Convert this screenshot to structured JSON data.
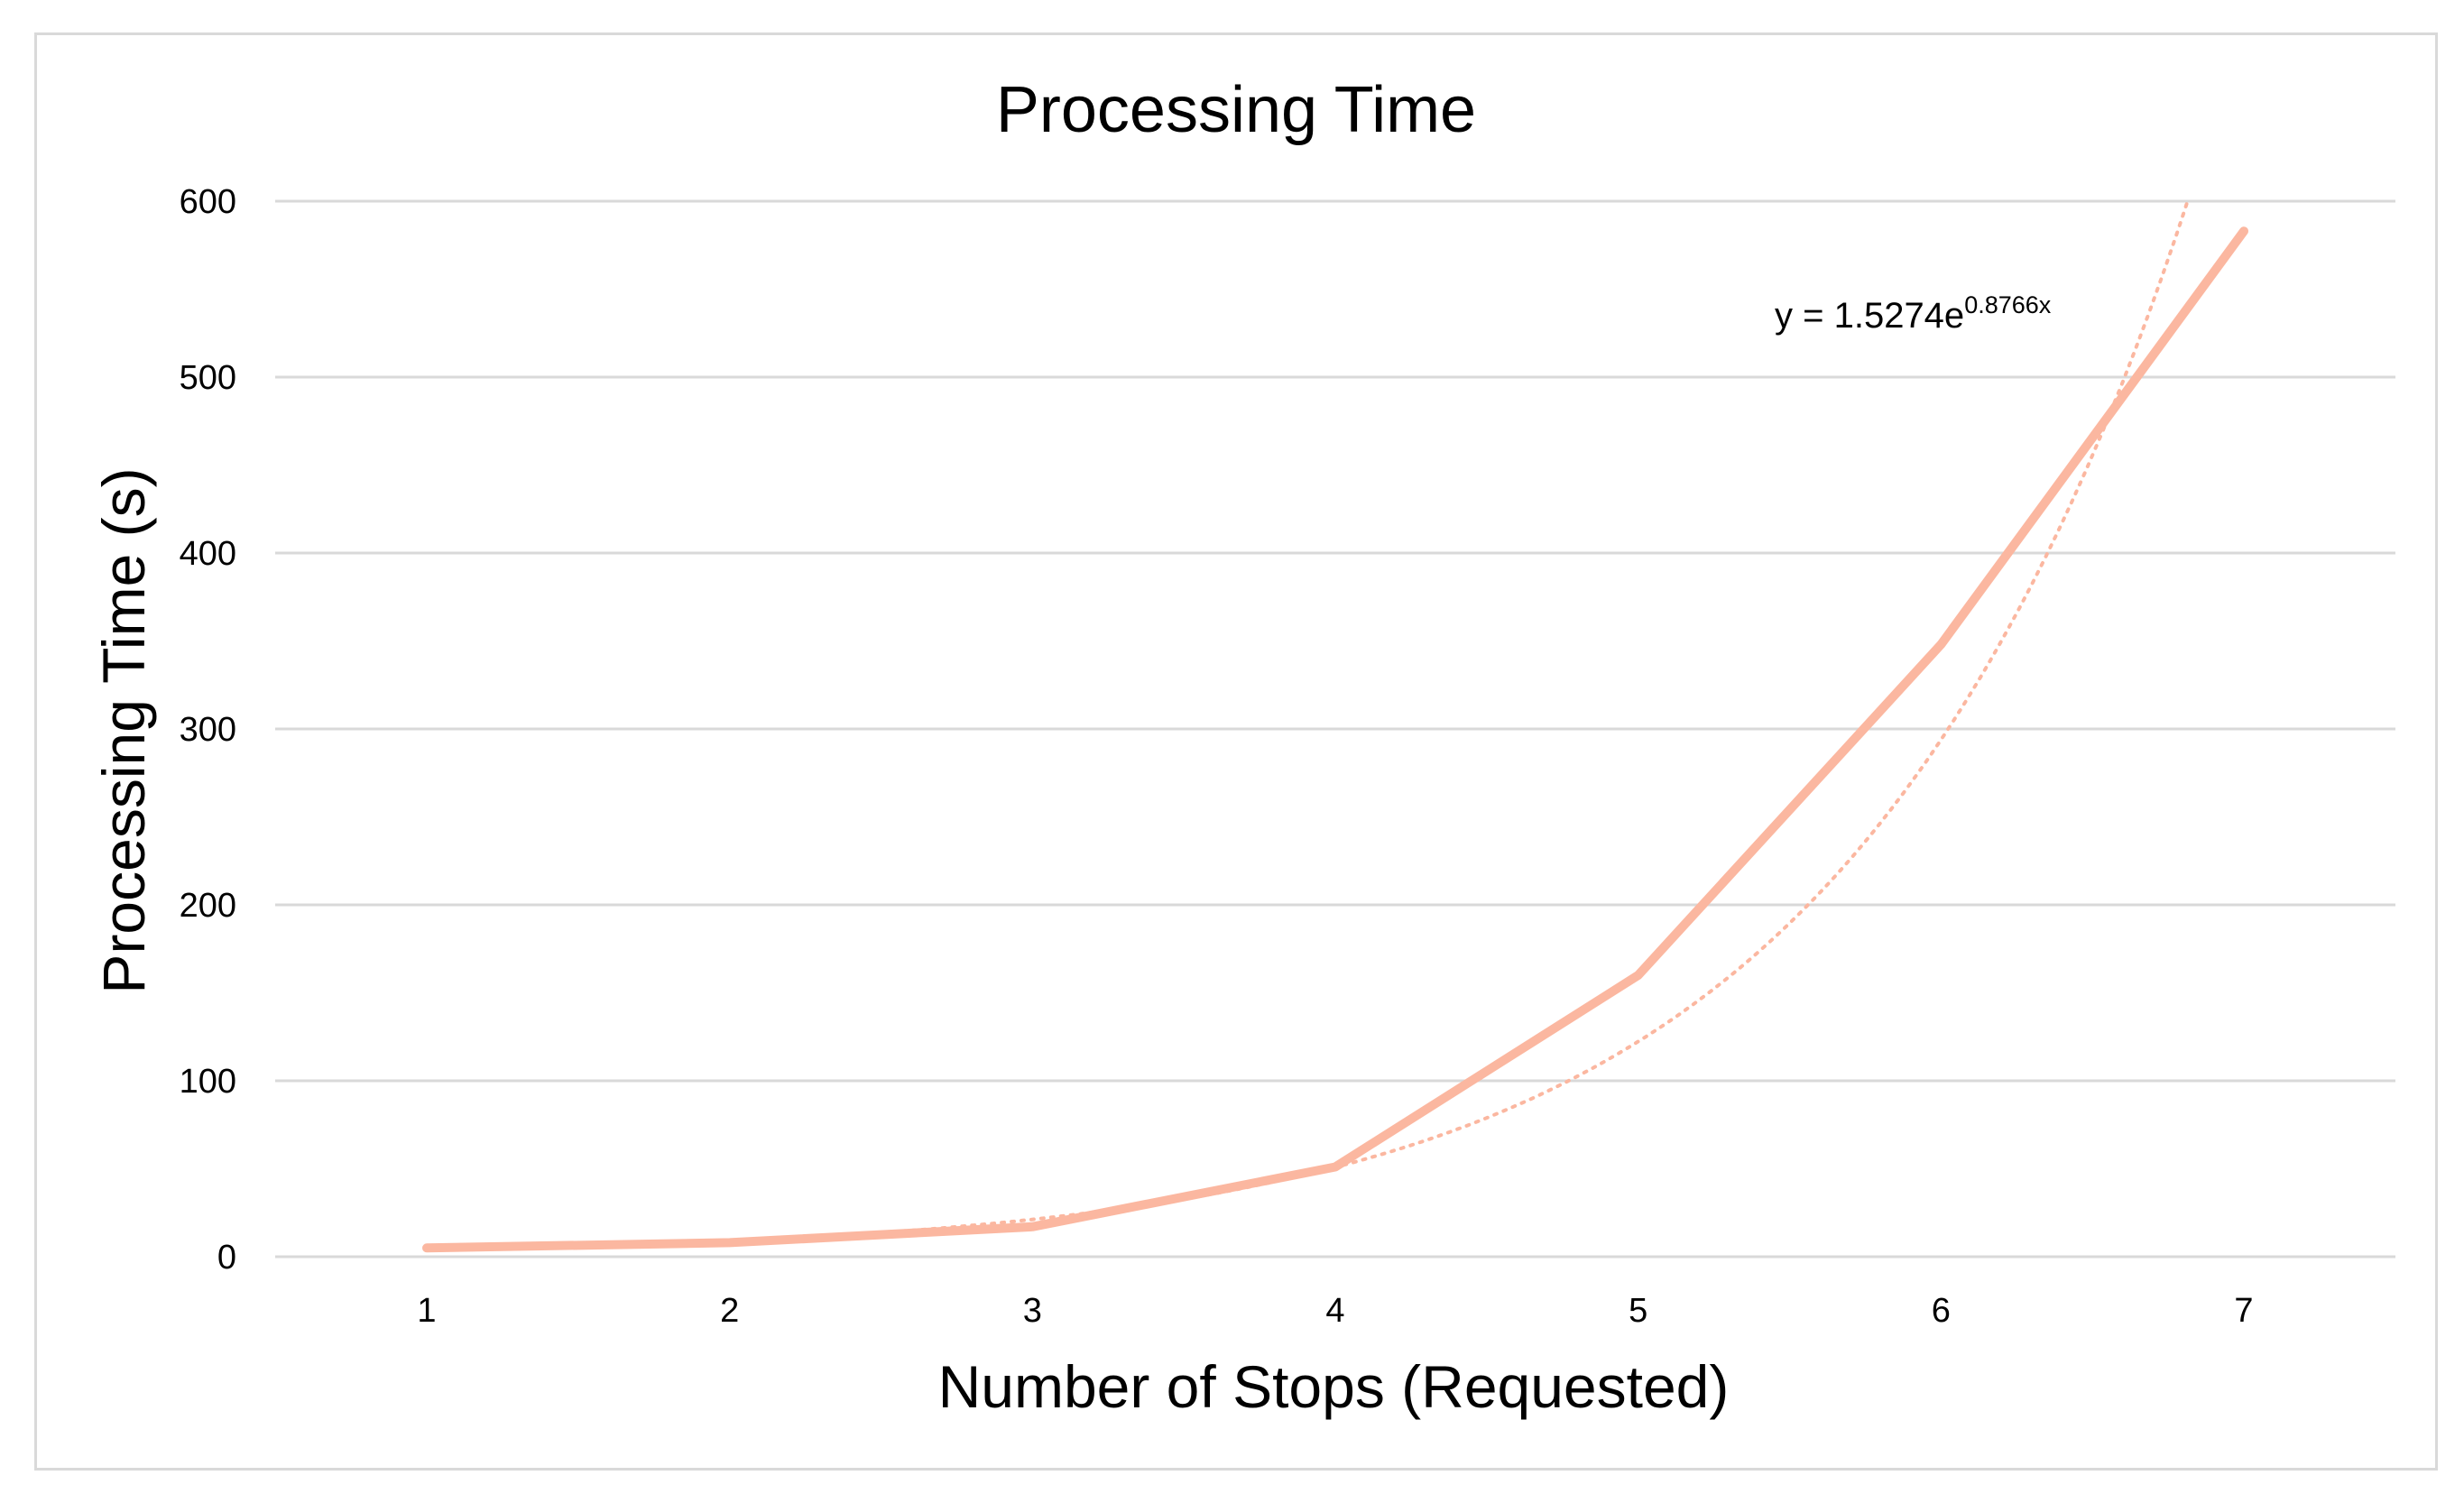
{
  "chart_data": {
    "type": "line",
    "title": "Processing Time",
    "xlabel": "Number of Stops (Requested)",
    "ylabel": "Processing Time (s)",
    "categories": [
      "1",
      "2",
      "3",
      "4",
      "5",
      "6",
      "7"
    ],
    "x": [
      1,
      2,
      3,
      4,
      5,
      6,
      7
    ],
    "series": [
      {
        "values": [
          5,
          8,
          17,
          51,
          160,
          348,
          583
        ],
        "color": "#fbb7a0"
      }
    ],
    "trendline": {
      "type": "exponential",
      "equation_prefix": "y = 1.5274e",
      "equation_exponent": "0.8766x",
      "a": 1.5274,
      "b": 0.8766,
      "color": "#fbb7a0",
      "style": "dotted"
    },
    "yticks": [
      "0",
      "100",
      "200",
      "300",
      "400",
      "500",
      "600"
    ],
    "ylim": [
      0,
      600
    ],
    "grid": true,
    "legend": "none"
  }
}
